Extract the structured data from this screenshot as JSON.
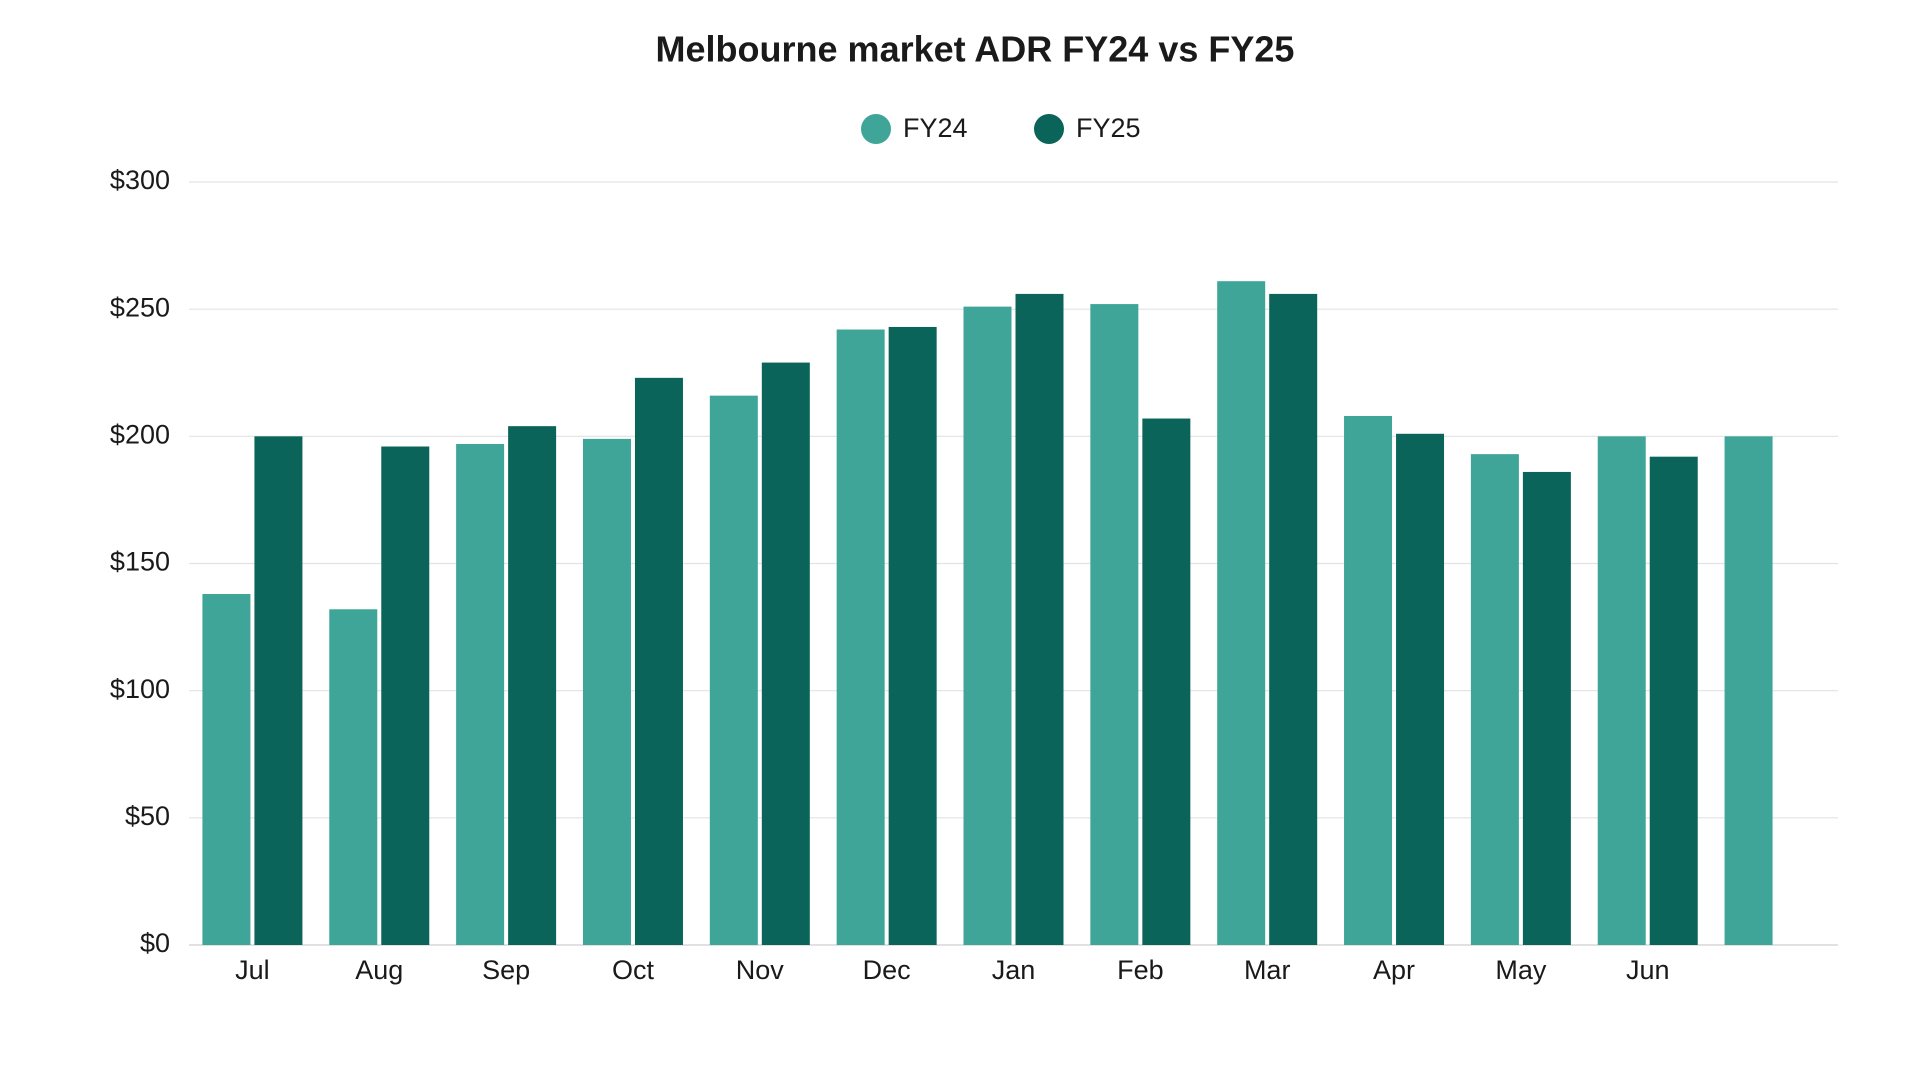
{
  "chart_data": {
    "type": "bar",
    "title": "Melbourne market ADR FY24 vs FY25",
    "categories": [
      "Jul",
      "Aug",
      "Sep",
      "Oct",
      "Nov",
      "Dec",
      "Jan",
      "Feb",
      "Mar",
      "Apr",
      "May",
      "Jun",
      null
    ],
    "series": [
      {
        "name": "FY24",
        "color": "#3fa598",
        "values": [
          138,
          132,
          197,
          199,
          216,
          242,
          251,
          252,
          261,
          208,
          193,
          200,
          200
        ]
      },
      {
        "name": "FY25",
        "color": "#0a6459",
        "values": [
          200,
          196,
          204,
          223,
          229,
          243,
          256,
          207,
          256,
          201,
          186,
          192,
          null
        ]
      }
    ],
    "ylim": [
      0,
      300
    ],
    "yticks": [
      {
        "value": 0,
        "label": "$0"
      },
      {
        "value": 50,
        "label": "$50"
      },
      {
        "value": 100,
        "label": "$100"
      },
      {
        "value": 150,
        "label": "$150"
      },
      {
        "value": 200,
        "label": "$200"
      },
      {
        "value": 250,
        "label": "$250"
      },
      {
        "value": 300,
        "label": "$300"
      }
    ],
    "grid": true,
    "legend": "top"
  }
}
